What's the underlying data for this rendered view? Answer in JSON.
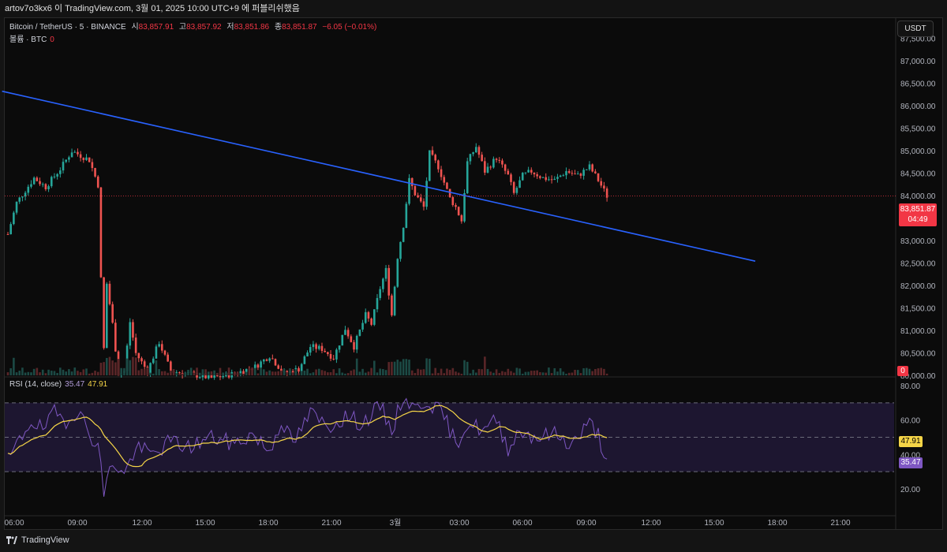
{
  "topbar": {
    "text": "artov7o3kx6 이 TradingView.com, 3월 01, 2025 10:00 UTC+9 에 퍼블리쉬했음"
  },
  "legend": {
    "symbol": "Bitcoin / TetherUS · 5 · BINANCE",
    "open_label": "시",
    "open": "83,857.91",
    "high_label": "고",
    "high": "83,857.92",
    "low_label": "저",
    "low": "83,851.86",
    "close_label": "종",
    "close": "83,851.87",
    "change": "−6.05 (−0.01%)",
    "volume_label": "볼륨 · BTC",
    "volume": "0"
  },
  "currency_button": "USDT",
  "price_axis": {
    "labels": [
      "87,500.00",
      "87,000.00",
      "86,500.00",
      "86,000.00",
      "85,500.00",
      "85,000.00",
      "84,500.00",
      "84,000.00",
      "83,500.00",
      "83,000.00",
      "82,500.00",
      "82,000.00",
      "81,500.00",
      "81,000.00",
      "80,500.00",
      "80,000.00"
    ],
    "current_price": "83,851.87",
    "countdown": "04:49",
    "volume_tag": "0"
  },
  "rsi": {
    "title": "RSI (14, close)",
    "rsi_value": "35.47",
    "ma_value": "47.91",
    "axis_labels": [
      "80.00",
      "60.00",
      "40.00",
      "20.00"
    ]
  },
  "time_axis": {
    "labels": [
      "06:00",
      "09:00",
      "12:00",
      "15:00",
      "18:00",
      "21:00",
      "3월",
      "03:00",
      "06:00",
      "09:00",
      "12:00",
      "15:00",
      "18:00",
      "21:00"
    ]
  },
  "footer": {
    "brand": "TradingView"
  },
  "colors": {
    "up": "#26a69a",
    "down": "#ef5350",
    "trendline": "#2962ff",
    "rsi": "#7e57c2",
    "rsi_ma": "#f5d547",
    "price_tag": "#f23645"
  },
  "chart_data": {
    "type": "candlestick",
    "ylim": [
      80000,
      87700
    ],
    "rsi_ylim": [
      10,
      82
    ],
    "rsi_bands": [
      70,
      50,
      30
    ],
    "anchors": [
      {
        "t": 0,
        "p": 83000
      },
      {
        "t": 3,
        "p": 83700
      },
      {
        "t": 9,
        "p": 84250
      },
      {
        "t": 13,
        "p": 84050
      },
      {
        "t": 18,
        "p": 84450
      },
      {
        "t": 22,
        "p": 84850
      },
      {
        "t": 28,
        "p": 84650
      },
      {
        "t": 31,
        "p": 84100
      },
      {
        "t": 32,
        "p": 82000
      },
      {
        "t": 33,
        "p": 80450
      },
      {
        "t": 34,
        "p": 81900
      },
      {
        "t": 36,
        "p": 81000
      },
      {
        "t": 38,
        "p": 79900
      },
      {
        "t": 40,
        "p": 79950
      },
      {
        "t": 42,
        "p": 81050
      },
      {
        "t": 44,
        "p": 80350
      },
      {
        "t": 48,
        "p": 79950
      },
      {
        "t": 52,
        "p": 80600
      },
      {
        "t": 56,
        "p": 79950
      },
      {
        "t": 62,
        "p": 79900
      },
      {
        "t": 70,
        "p": 79800
      },
      {
        "t": 78,
        "p": 79900
      },
      {
        "t": 85,
        "p": 80050
      },
      {
        "t": 90,
        "p": 80300
      },
      {
        "t": 95,
        "p": 79900
      },
      {
        "t": 100,
        "p": 80000
      },
      {
        "t": 104,
        "p": 80500
      },
      {
        "t": 108,
        "p": 80450
      },
      {
        "t": 112,
        "p": 80250
      },
      {
        "t": 116,
        "p": 80900
      },
      {
        "t": 119,
        "p": 80500
      },
      {
        "t": 123,
        "p": 81200
      },
      {
        "t": 125,
        "p": 81000
      },
      {
        "t": 128,
        "p": 81800
      },
      {
        "t": 130,
        "p": 82200
      },
      {
        "t": 132,
        "p": 81200
      },
      {
        "t": 134,
        "p": 82500
      },
      {
        "t": 136,
        "p": 83200
      },
      {
        "t": 138,
        "p": 84200
      },
      {
        "t": 140,
        "p": 83900
      },
      {
        "t": 143,
        "p": 83600
      },
      {
        "t": 145,
        "p": 84800
      },
      {
        "t": 148,
        "p": 84500
      },
      {
        "t": 152,
        "p": 83800
      },
      {
        "t": 154,
        "p": 83600
      },
      {
        "t": 156,
        "p": 83300
      },
      {
        "t": 158,
        "p": 84600
      },
      {
        "t": 161,
        "p": 84950
      },
      {
        "t": 164,
        "p": 84400
      },
      {
        "t": 168,
        "p": 84700
      },
      {
        "t": 172,
        "p": 84300
      },
      {
        "t": 174,
        "p": 83900
      },
      {
        "t": 177,
        "p": 84300
      },
      {
        "t": 180,
        "p": 84400
      },
      {
        "t": 184,
        "p": 84250
      },
      {
        "t": 188,
        "p": 84200
      },
      {
        "t": 192,
        "p": 84400
      },
      {
        "t": 196,
        "p": 84300
      },
      {
        "t": 200,
        "p": 84500
      },
      {
        "t": 203,
        "p": 84200
      },
      {
        "t": 206,
        "p": 83850
      }
    ],
    "rsi_anchors": [
      {
        "t": 0,
        "v": 36
      },
      {
        "t": 4,
        "v": 48
      },
      {
        "t": 8,
        "v": 60
      },
      {
        "t": 12,
        "v": 54
      },
      {
        "t": 16,
        "v": 64
      },
      {
        "t": 20,
        "v": 60
      },
      {
        "t": 24,
        "v": 66
      },
      {
        "t": 28,
        "v": 52
      },
      {
        "t": 31,
        "v": 46
      },
      {
        "t": 33,
        "v": 18
      },
      {
        "t": 36,
        "v": 36
      },
      {
        "t": 40,
        "v": 28
      },
      {
        "t": 44,
        "v": 44
      },
      {
        "t": 50,
        "v": 40
      },
      {
        "t": 56,
        "v": 48
      },
      {
        "t": 62,
        "v": 44
      },
      {
        "t": 70,
        "v": 50
      },
      {
        "t": 78,
        "v": 46
      },
      {
        "t": 84,
        "v": 52
      },
      {
        "t": 90,
        "v": 42
      },
      {
        "t": 94,
        "v": 60
      },
      {
        "t": 98,
        "v": 46
      },
      {
        "t": 104,
        "v": 64
      },
      {
        "t": 110,
        "v": 56
      },
      {
        "t": 116,
        "v": 62
      },
      {
        "t": 122,
        "v": 58
      },
      {
        "t": 128,
        "v": 68
      },
      {
        "t": 132,
        "v": 54
      },
      {
        "t": 136,
        "v": 74
      },
      {
        "t": 140,
        "v": 66
      },
      {
        "t": 144,
        "v": 72
      },
      {
        "t": 150,
        "v": 62
      },
      {
        "t": 154,
        "v": 46
      },
      {
        "t": 158,
        "v": 58
      },
      {
        "t": 164,
        "v": 54
      },
      {
        "t": 168,
        "v": 60
      },
      {
        "t": 172,
        "v": 44
      },
      {
        "t": 176,
        "v": 54
      },
      {
        "t": 182,
        "v": 50
      },
      {
        "t": 188,
        "v": 52
      },
      {
        "t": 194,
        "v": 46
      },
      {
        "t": 200,
        "v": 58
      },
      {
        "t": 203,
        "v": 52
      },
      {
        "t": 206,
        "v": 35
      }
    ],
    "trendline": [
      {
        "t": -2,
        "p": 86180
      },
      {
        "t": 257,
        "p": 82400
      }
    ]
  }
}
